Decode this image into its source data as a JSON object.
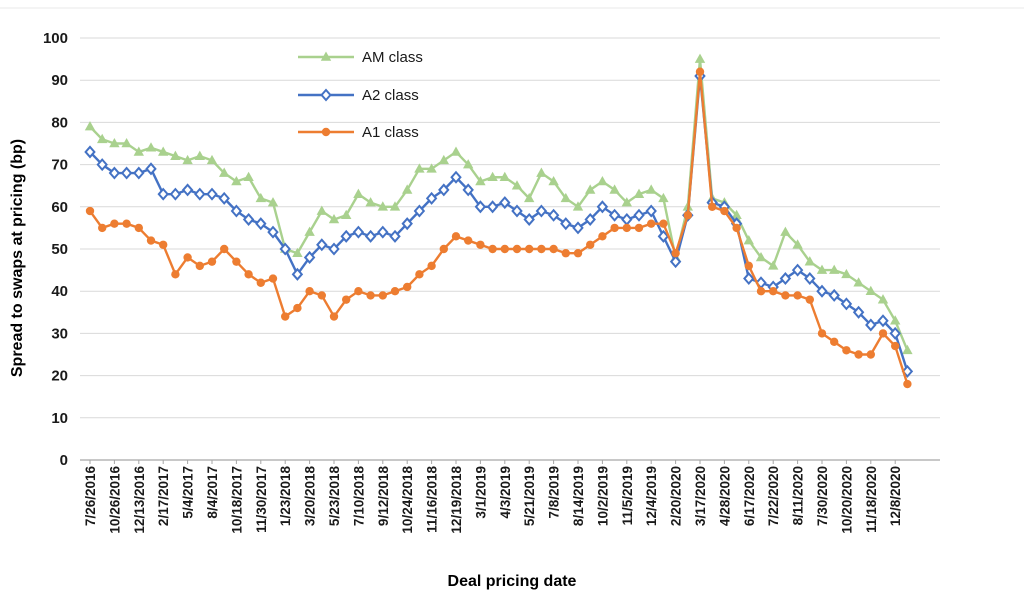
{
  "chart_data": {
    "type": "line",
    "title": "",
    "xlabel": "Deal pricing date",
    "ylabel": "Spread to swaps at pricing (bp)",
    "ylim": [
      0,
      100
    ],
    "ytick_step": 10,
    "grid": true,
    "legend_position": "top-inside-left",
    "y_tick_labels": [
      "0",
      "10",
      "20",
      "30",
      "40",
      "50",
      "60",
      "70",
      "80",
      "90",
      "100"
    ],
    "x_tick_labels": [
      "7/26/2016",
      "10/26/2016",
      "12/13/2016",
      "2/17/2017",
      "5/4/2017",
      "8/4/2017",
      "10/18/2017",
      "11/30/2017",
      "1/23/2018",
      "3/20/2018",
      "5/23/2018",
      "7/10/2018",
      "9/12/2018",
      "10/24/2018",
      "11/16/2018",
      "12/19/2018",
      "3/1/2019",
      "4/3/2019",
      "5/21/2019",
      "7/8/2019",
      "8/14/2019",
      "10/2/2019",
      "11/5/2019",
      "12/4/2019",
      "2/20/2020",
      "3/17/2020",
      "4/28/2020",
      "6/17/2020",
      "7/22/2020",
      "8/11/2020",
      "7/30/2020",
      "10/20/2020",
      "11/18/2020",
      "12/8/2020"
    ],
    "points_per_label": 2,
    "colors": {
      "am": "#A9D18E",
      "a2": "#4472C4",
      "a1": "#ED7D31",
      "gridline": "#d9d9d9",
      "axis_line": "#a6a6a6",
      "text": "#1a1a1a"
    },
    "series": [
      {
        "name": "AM class",
        "marker": "triangle",
        "color": "#A9D18E",
        "values": [
          79,
          76,
          75,
          75,
          73,
          74,
          73,
          72,
          71,
          72,
          71,
          68,
          66,
          67,
          62,
          61,
          50,
          49,
          54,
          59,
          57,
          58,
          63,
          61,
          60,
          60,
          64,
          69,
          69,
          71,
          73,
          70,
          66,
          67,
          67,
          65,
          62,
          68,
          66,
          62,
          60,
          64,
          66,
          64,
          61,
          63,
          64,
          62,
          48,
          60,
          95,
          62,
          61,
          58,
          52,
          48,
          46,
          54,
          51,
          47,
          45,
          45,
          44,
          42,
          40,
          38,
          33,
          26
        ]
      },
      {
        "name": "A2 class",
        "marker": "diamond",
        "color": "#4472C4",
        "values": [
          73,
          70,
          68,
          68,
          68,
          69,
          63,
          63,
          64,
          63,
          63,
          62,
          59,
          57,
          56,
          54,
          50,
          44,
          48,
          51,
          50,
          53,
          54,
          53,
          54,
          53,
          56,
          59,
          62,
          64,
          67,
          64,
          60,
          60,
          61,
          59,
          57,
          59,
          58,
          56,
          55,
          57,
          60,
          58,
          57,
          58,
          59,
          53,
          47,
          58,
          91,
          61,
          60,
          56,
          43,
          42,
          41,
          43,
          45,
          43,
          40,
          39,
          37,
          35,
          32,
          33,
          30,
          21
        ]
      },
      {
        "name": "A1 class",
        "marker": "circle",
        "color": "#ED7D31",
        "values": [
          59,
          55,
          56,
          56,
          55,
          52,
          51,
          44,
          48,
          46,
          47,
          50,
          47,
          44,
          42,
          43,
          34,
          36,
          40,
          39,
          34,
          38,
          40,
          39,
          39,
          40,
          41,
          44,
          46,
          50,
          53,
          52,
          51,
          50,
          50,
          50,
          50,
          50,
          50,
          49,
          49,
          51,
          53,
          55,
          55,
          55,
          56,
          56,
          49,
          58,
          92,
          60,
          59,
          55,
          46,
          40,
          40,
          39,
          39,
          38,
          30,
          28,
          26,
          25,
          25,
          30,
          27,
          18
        ]
      }
    ]
  }
}
